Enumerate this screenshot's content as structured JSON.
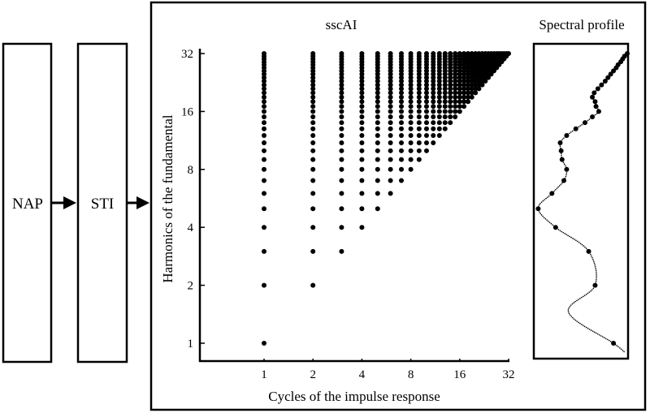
{
  "boxes": {
    "nap": "NAP",
    "sti": "STI"
  },
  "chart_data": [
    {
      "type": "scatter",
      "title": "sscAI",
      "xlabel": "Cycles of the impulse response",
      "ylabel": "Harmonics of the fundamental",
      "x_scale": "log2",
      "y_scale": "log2",
      "xlim": [
        1,
        32
      ],
      "ylim": [
        1,
        32
      ],
      "xticks": [
        "1",
        "2",
        "4",
        "8",
        "16",
        "32"
      ],
      "yticks": [
        "1",
        "2",
        "4",
        "8",
        "16",
        "32"
      ],
      "points_rule": "integer cycles c and harmonics h, 1..32, with h >= c",
      "grid": false
    },
    {
      "type": "line",
      "title": "Spectral profile",
      "y_scale": "log2",
      "harmonics": [
        1,
        2,
        3,
        4,
        5,
        6,
        7,
        8,
        9,
        10,
        11,
        12,
        13,
        14,
        15,
        16,
        17,
        18,
        19,
        20,
        21,
        22,
        23,
        24,
        25,
        26,
        27,
        28,
        29,
        30,
        31,
        32
      ],
      "values": [
        0.85,
        0.65,
        0.58,
        0.22,
        0.03,
        0.18,
        0.31,
        0.34,
        0.29,
        0.28,
        0.27,
        0.34,
        0.44,
        0.54,
        0.62,
        0.69,
        0.66,
        0.65,
        0.62,
        0.64,
        0.68,
        0.72,
        0.76,
        0.79,
        0.82,
        0.85,
        0.88,
        0.9,
        0.93,
        0.95,
        0.97,
        1.0
      ],
      "curve_extra": [
        [
          1.45,
          0.36
        ],
        [
          0.9,
          0.97
        ]
      ]
    }
  ],
  "colors": {
    "ink": "#000000",
    "background": "#ffffff"
  }
}
